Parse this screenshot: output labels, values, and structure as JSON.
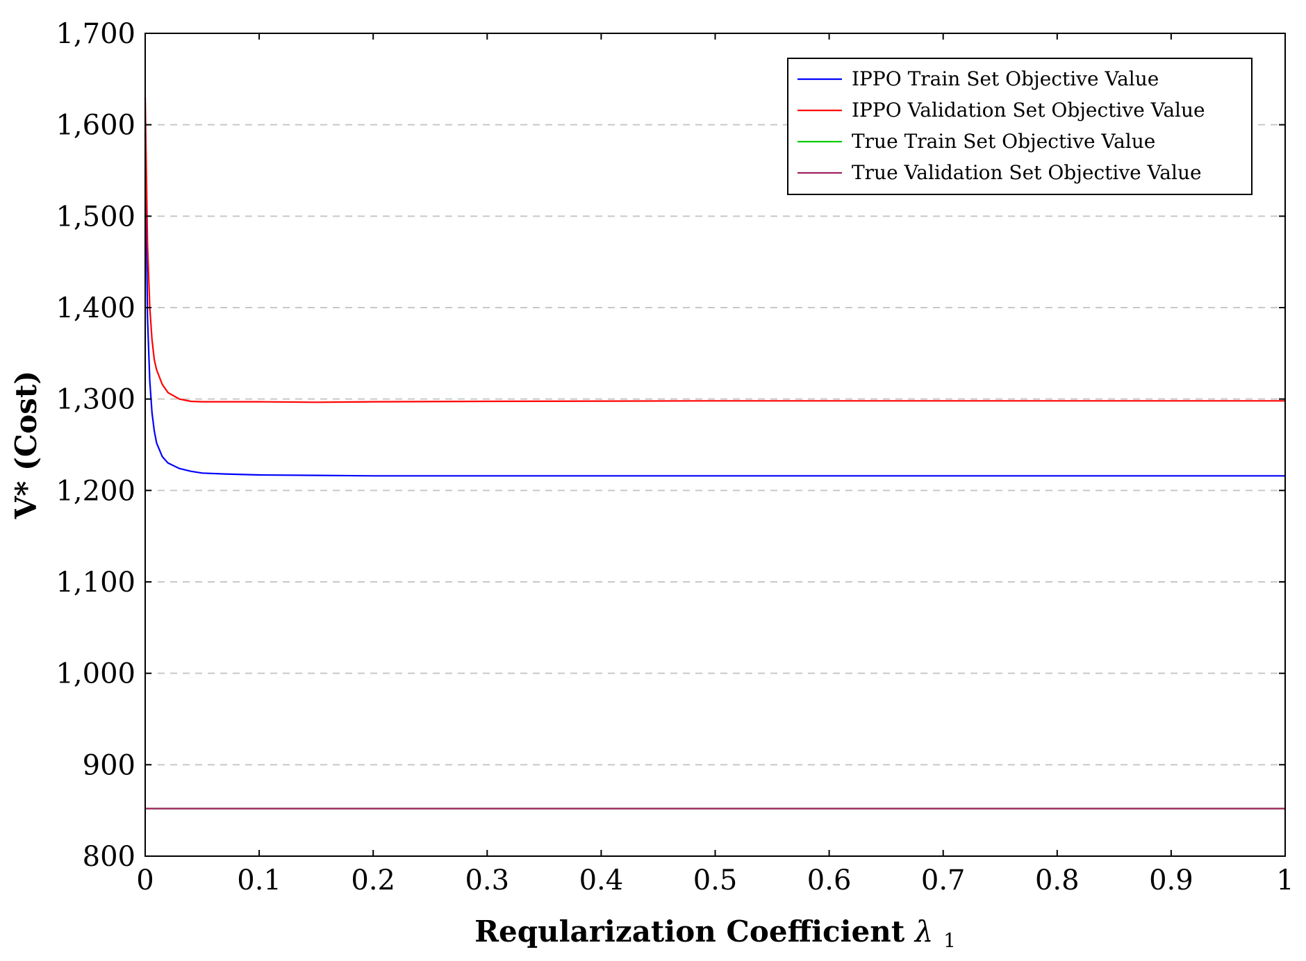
{
  "chart_data": {
    "type": "line",
    "title": "",
    "xlabel": "Reqularization Coefficient",
    "xlabel_symbol": "λ",
    "xlabel_subscript": "1",
    "ylabel": "V* (Cost)",
    "xlim": [
      0,
      1
    ],
    "ylim": [
      800,
      1700
    ],
    "x_ticks": [
      0,
      0.1,
      0.2,
      0.3,
      0.4,
      0.5,
      0.6,
      0.7,
      0.8,
      0.9,
      1
    ],
    "x_tick_labels": [
      "0",
      "0.1",
      "0.2",
      "0.3",
      "0.4",
      "0.5",
      "0.6",
      "0.7",
      "0.8",
      "0.9",
      "1"
    ],
    "y_ticks": [
      800,
      900,
      1000,
      1100,
      1200,
      1300,
      1400,
      1500,
      1600,
      1700
    ],
    "y_tick_labels": [
      "800",
      "900",
      "1,000",
      "1,100",
      "1,200",
      "1,300",
      "1,400",
      "1,500",
      "1,600",
      "1,700"
    ],
    "grid": "horizontal-dashed",
    "legend_position": "top-right",
    "series": [
      {
        "name": "IPPO Train Set Objective Value",
        "color": "#0000ff",
        "x": [
          0,
          0.002,
          0.004,
          0.006,
          0.008,
          0.01,
          0.015,
          0.02,
          0.03,
          0.04,
          0.05,
          0.07,
          0.1,
          0.15,
          0.2,
          0.3,
          0.5,
          0.7,
          1.0
        ],
        "y": [
          1590,
          1390,
          1320,
          1285,
          1265,
          1252,
          1237,
          1230,
          1224,
          1221,
          1219,
          1218,
          1217,
          1216.5,
          1216,
          1216,
          1216,
          1216,
          1216
        ]
      },
      {
        "name": "IPPO Validation Set Objective Value",
        "color": "#ff0000",
        "x": [
          0,
          0.002,
          0.004,
          0.006,
          0.008,
          0.01,
          0.015,
          0.02,
          0.03,
          0.04,
          0.05,
          0.1,
          0.15,
          0.2,
          0.3,
          0.5,
          0.7,
          1.0
        ],
        "y": [
          1630,
          1470,
          1400,
          1365,
          1343,
          1332,
          1316,
          1307,
          1300,
          1297.5,
          1297,
          1297,
          1296.5,
          1297,
          1297.5,
          1298,
          1298,
          1298
        ]
      },
      {
        "name": "True Train Set Objective Value",
        "color": "#00cc00",
        "x": [
          0,
          1
        ],
        "y": [
          852,
          852
        ]
      },
      {
        "name": "True Validation Set Objective Value",
        "color": "#a0205f",
        "x": [
          0,
          1
        ],
        "y": [
          852,
          852
        ]
      }
    ]
  }
}
